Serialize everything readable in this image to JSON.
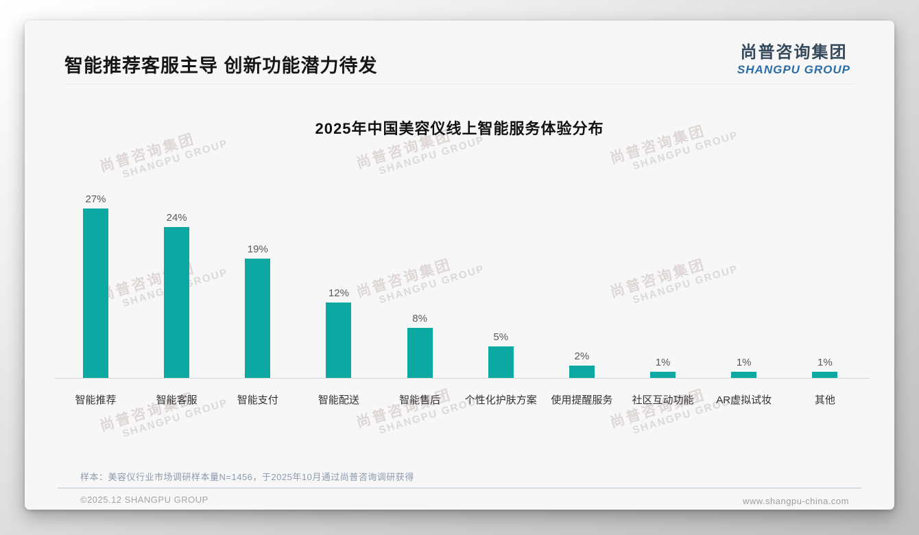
{
  "page": {
    "title": "智能推荐客服主导 创新功能潜力待发",
    "logo": {
      "cn": "尚普咨询集团",
      "en": "SHANGPU GROUP"
    },
    "watermark": {
      "cn": "尚普咨询集团",
      "en": "SHANGPU GROUP"
    },
    "note": "样本：美容仪行业市场调研样本量N=1456，于2025年10月通过尚普咨询调研获得",
    "footer": {
      "left": "©2025.12 SHANGPU GROUP",
      "right": "www.shangpu-china.com"
    }
  },
  "chart_data": {
    "type": "bar",
    "title": "2025年中国美容仪线上智能服务体验分布",
    "categories": [
      "智能推荐",
      "智能客服",
      "智能支付",
      "智能配送",
      "智能售后",
      "个性化护肤方案",
      "使用提醒服务",
      "社区互动功能",
      "AR虚拟试妆",
      "其他"
    ],
    "values": [
      27,
      24,
      19,
      12,
      8,
      5,
      2,
      1,
      1,
      1
    ],
    "value_labels": [
      "27%",
      "24%",
      "19%",
      "12%",
      "8%",
      "5%",
      "2%",
      "1%",
      "1%",
      "1%"
    ],
    "unit": "%",
    "ylim": [
      0,
      30
    ],
    "grid": false,
    "legend": "none",
    "bar_color": "#0ba9a2",
    "value_label_color": "#595959",
    "axis_color": "#d8d8d8"
  }
}
